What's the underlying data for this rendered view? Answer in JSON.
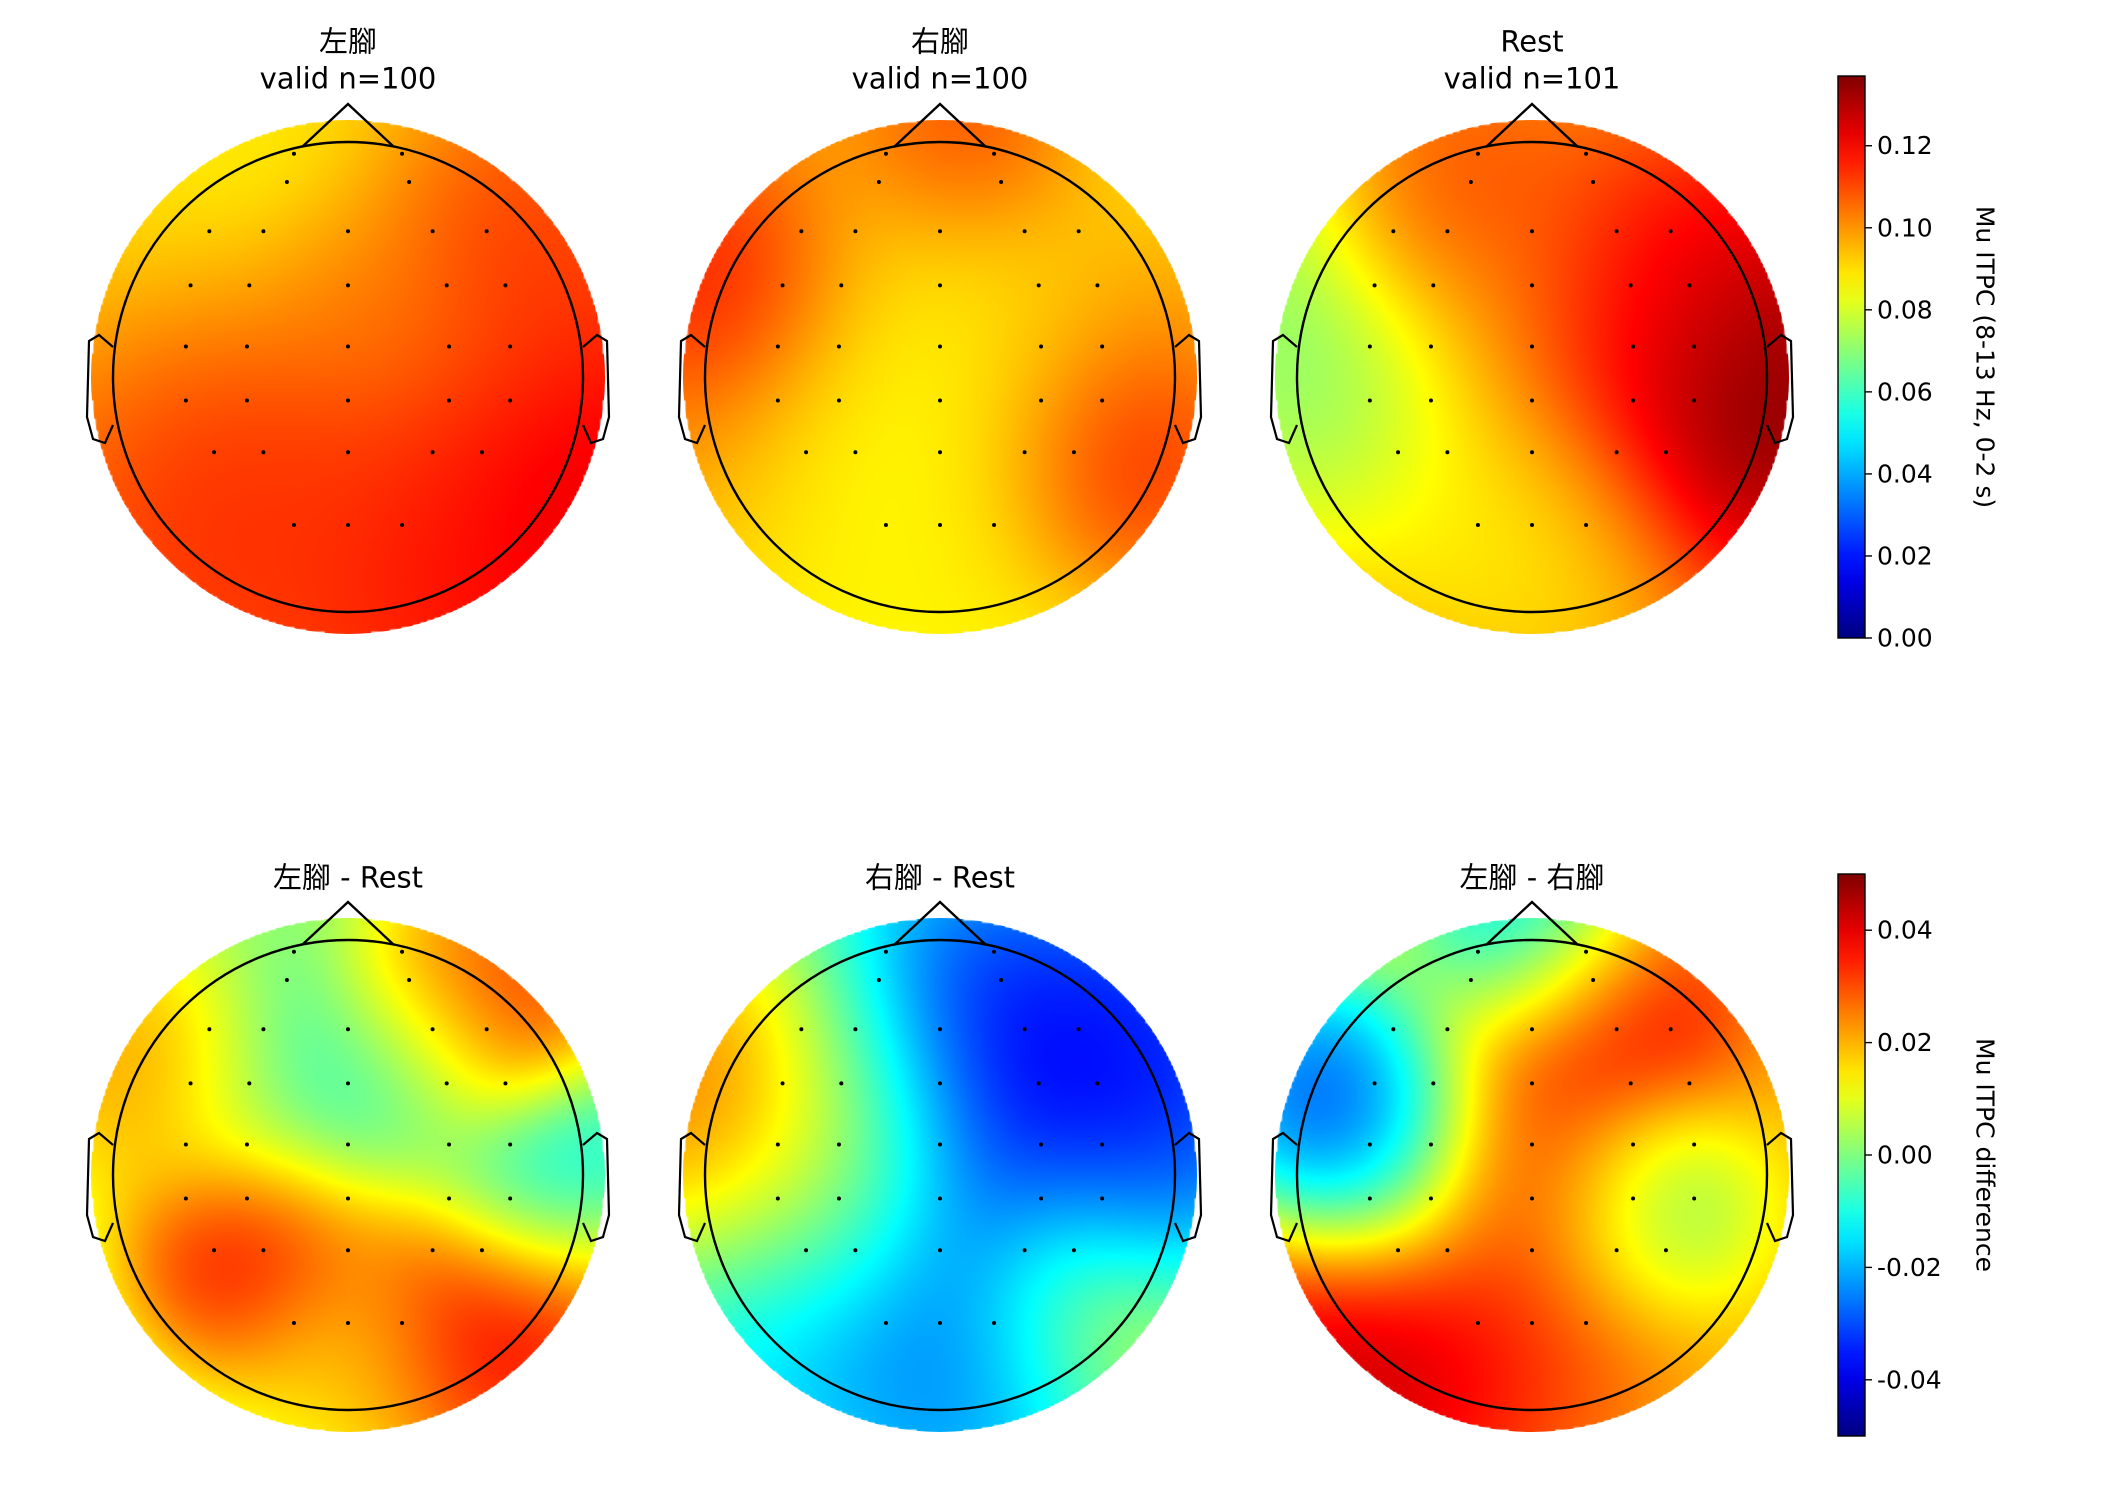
{
  "figure": {
    "topomaps": [
      {
        "id": "left-foot",
        "title_line1": "左腳",
        "title_line2": "valid n=100",
        "row": 0,
        "col": 0,
        "scale": "itpc",
        "blobs": [
          [
            -0.55,
            -0.25,
            0.14,
            0.55
          ],
          [
            -0.4,
            -0.3,
            0.12,
            0.35
          ],
          [
            0.6,
            -0.2,
            0.14,
            0.55
          ],
          [
            0.55,
            0.6,
            0.13,
            0.35
          ],
          [
            0.25,
            0.45,
            0.08,
            -0.6
          ],
          [
            -0.6,
            0.15,
            0.07,
            -0.7
          ],
          [
            0.0,
            0.3,
            0.11,
            0.25
          ],
          [
            0.0,
            -0.55,
            0.11,
            0.35
          ],
          [
            0.3,
            -0.7,
            0.12,
            0.3
          ]
        ],
        "base": 0.108
      },
      {
        "id": "right-foot",
        "title_line1": "右腳",
        "title_line2": "valid n=100",
        "row": 0,
        "col": 1,
        "scale": "itpc",
        "blobs": [
          [
            -0.5,
            0.3,
            0.13,
            0.6
          ],
          [
            0.45,
            0.05,
            0.13,
            0.5
          ],
          [
            0.0,
            0.3,
            0.06,
            -0.6
          ],
          [
            0.0,
            -0.05,
            0.06,
            -0.5
          ],
          [
            0.1,
            0.95,
            0.13,
            0.3
          ],
          [
            0.7,
            -0.35,
            0.13,
            0.3
          ],
          [
            -0.85,
            0.4,
            0.13,
            0.3
          ],
          [
            0.0,
            -0.6,
            0.09,
            0.4
          ]
        ],
        "base": 0.085
      },
      {
        "id": "rest",
        "title_line1": "Rest",
        "title_line2": "valid n=101",
        "row": 0,
        "col": 2,
        "scale": "itpc",
        "blobs": [
          [
            0.85,
            -0.05,
            0.15,
            0.45
          ],
          [
            -0.4,
            0.7,
            0.12,
            0.3
          ],
          [
            -0.85,
            0.2,
            0.06,
            -0.5
          ],
          [
            0.0,
            0.3,
            0.11,
            0.4
          ],
          [
            0.0,
            -0.6,
            0.085,
            -0.4
          ],
          [
            0.55,
            0.3,
            0.12,
            0.35
          ]
        ],
        "base": 0.1
      },
      {
        "id": "left-minus-rest",
        "title_line1": "左腳 - Rest",
        "title_line2": "",
        "row": 1,
        "col": 0,
        "scale": "diff",
        "blobs": [
          [
            -0.4,
            -0.3,
            0.05,
            0.3
          ],
          [
            0.6,
            -0.55,
            0.05,
            0.4
          ],
          [
            0.55,
            0.6,
            0.05,
            0.3
          ],
          [
            0.8,
            0.0,
            -0.03,
            0.3
          ],
          [
            -0.2,
            0.35,
            -0.01,
            0.4
          ],
          [
            0.3,
            0.5,
            -0.025,
            0.25
          ],
          [
            -0.8,
            0.45,
            0.03,
            0.3
          ],
          [
            0.0,
            -0.7,
            0.015,
            0.3
          ],
          [
            0.4,
            0.7,
            0.03,
            0.25
          ]
        ],
        "base": 0.005
      },
      {
        "id": "right-minus-rest",
        "title_line1": "右腳 - Rest",
        "title_line2": "",
        "row": 1,
        "col": 1,
        "scale": "diff",
        "blobs": [
          [
            -0.7,
            0.25,
            0.05,
            0.45
          ],
          [
            -0.4,
            0.0,
            0.03,
            0.35
          ],
          [
            0.1,
            0.35,
            -0.05,
            0.5
          ],
          [
            0.0,
            -0.1,
            -0.045,
            0.5
          ],
          [
            0.8,
            -0.1,
            -0.04,
            0.3
          ],
          [
            0.8,
            0.5,
            -0.04,
            0.3
          ],
          [
            0.6,
            -0.5,
            0.03,
            0.35
          ],
          [
            0.2,
            -0.75,
            -0.03,
            0.35
          ],
          [
            -0.5,
            -0.5,
            -0.02,
            0.4
          ]
        ],
        "base": -0.005
      },
      {
        "id": "left-minus-right",
        "title_line1": "左腳 - 右腳",
        "title_line2": "",
        "row": 1,
        "col": 2,
        "scale": "diff",
        "blobs": [
          [
            -0.6,
            0.1,
            -0.05,
            0.35
          ],
          [
            -0.8,
            0.3,
            -0.045,
            0.3
          ],
          [
            0.0,
            0.35,
            0.045,
            0.45
          ],
          [
            0.25,
            0.75,
            0.05,
            0.3
          ],
          [
            0.0,
            0.0,
            0.04,
            0.3
          ],
          [
            0.4,
            -0.1,
            -0.02,
            0.3
          ],
          [
            -0.6,
            -0.6,
            0.055,
            0.45
          ],
          [
            0.0,
            -0.5,
            0.03,
            0.4
          ],
          [
            0.0,
            0.95,
            -0.05,
            0.3
          ]
        ],
        "base": 0.018
      }
    ],
    "colorbars": [
      {
        "id": "itpc",
        "label": "Mu ITPC (8-13 Hz, 0-2 s)",
        "vmin": 0.0,
        "vmax": 0.137,
        "ticks": [
          "0.00",
          "0.02",
          "0.04",
          "0.06",
          "0.08",
          "0.10",
          "0.12"
        ],
        "tick_values": [
          0.0,
          0.02,
          0.04,
          0.06,
          0.08,
          0.1,
          0.12
        ]
      },
      {
        "id": "diff",
        "label": "Mu ITPC difference",
        "vmin": -0.05,
        "vmax": 0.05,
        "ticks": [
          "-0.04",
          "-0.02",
          "0.00",
          "0.02",
          "0.04"
        ],
        "tick_values": [
          -0.04,
          -0.02,
          0.0,
          0.02,
          0.04
        ]
      }
    ],
    "colormap": "jet",
    "sensors": [
      [
        -0.23,
        0.95
      ],
      [
        0.23,
        0.95
      ],
      [
        -0.26,
        0.83
      ],
      [
        0.26,
        0.83
      ],
      [
        -0.59,
        0.62
      ],
      [
        -0.36,
        0.62
      ],
      [
        0.0,
        0.62
      ],
      [
        0.36,
        0.62
      ],
      [
        0.59,
        0.62
      ],
      [
        -0.67,
        0.39
      ],
      [
        -0.42,
        0.39
      ],
      [
        0.0,
        0.39
      ],
      [
        0.42,
        0.39
      ],
      [
        0.67,
        0.39
      ],
      [
        -0.69,
        0.13
      ],
      [
        -0.43,
        0.13
      ],
      [
        0.0,
        0.13
      ],
      [
        0.43,
        0.13
      ],
      [
        0.69,
        0.13
      ],
      [
        -0.69,
        -0.1
      ],
      [
        -0.43,
        -0.1
      ],
      [
        0.0,
        -0.1
      ],
      [
        0.43,
        -0.1
      ],
      [
        0.69,
        -0.1
      ],
      [
        -0.57,
        -0.32
      ],
      [
        -0.36,
        -0.32
      ],
      [
        0.0,
        -0.32
      ],
      [
        0.36,
        -0.32
      ],
      [
        0.57,
        -0.32
      ],
      [
        -0.23,
        -0.63
      ],
      [
        0.0,
        -0.63
      ],
      [
        0.23,
        -0.63
      ]
    ]
  }
}
